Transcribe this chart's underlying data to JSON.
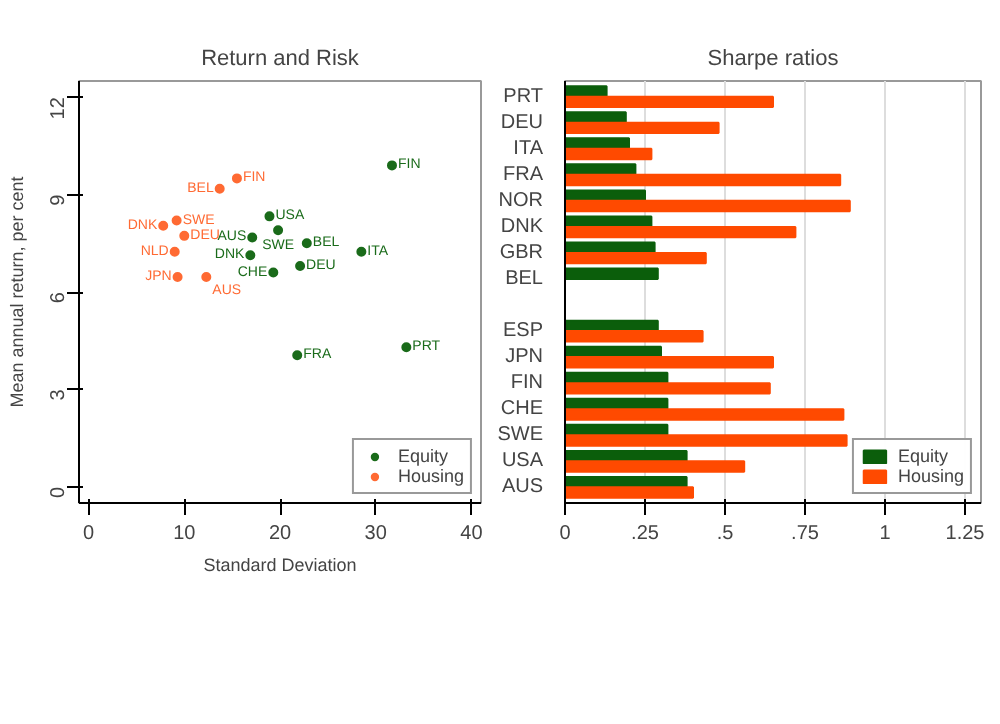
{
  "chart_data": [
    {
      "type": "scatter",
      "title": "Return and Risk",
      "xlabel": "Standard Deviation",
      "ylabel": "Mean annual return, per cent",
      "xlim": [
        -1,
        41
      ],
      "ylim": [
        -0.5,
        12.5
      ],
      "xticks": [
        0,
        10,
        20,
        30,
        40
      ],
      "yticks": [
        0,
        3,
        6,
        9,
        12
      ],
      "legend": "bottom right",
      "marker": "circle",
      "grid": false,
      "series": [
        {
          "name": "Equity",
          "color": "#1a6b1a",
          "x": [
            31.7,
            18.9,
            19.8,
            17.1,
            22.8,
            28.5,
            16.9,
            22.1,
            19.3,
            33.2,
            21.8
          ],
          "values": [
            9.9,
            8.33,
            7.9,
            7.68,
            7.5,
            7.24,
            7.13,
            6.8,
            6.6,
            4.3,
            4.05
          ]
        },
        {
          "name": "Housing",
          "color": "#ff6a33",
          "x": [
            15.5,
            13.7,
            9.2,
            7.8,
            10.0,
            9.0,
            12.3,
            9.3
          ],
          "values": [
            9.5,
            9.18,
            8.2,
            8.04,
            7.73,
            7.24,
            6.46,
            6.46
          ]
        }
      ],
      "annotations": [
        {
          "text": "FIN",
          "x": 31.7,
          "y": 9.9
        },
        {
          "text": "USA",
          "x": 18.9,
          "y": 8.33
        },
        {
          "text": "SWE",
          "x": 19.8,
          "y": 7.9
        },
        {
          "text": "AUS",
          "x": 17.1,
          "y": 7.68
        },
        {
          "text": "BEL",
          "x": 22.8,
          "y": 7.5
        },
        {
          "text": "ITA",
          "x": 28.5,
          "y": 7.24
        },
        {
          "text": "DNK",
          "x": 16.9,
          "y": 7.13
        },
        {
          "text": "DEU",
          "x": 22.1,
          "y": 6.8
        },
        {
          "text": "CHE",
          "x": 19.3,
          "y": 6.6
        },
        {
          "text": "PRT",
          "x": 33.2,
          "y": 4.3
        },
        {
          "text": "FRA",
          "x": 21.8,
          "y": 4.05
        },
        {
          "text": "FIN",
          "x": 15.5,
          "y": 9.5
        },
        {
          "text": "BEL",
          "x": 13.7,
          "y": 9.18
        },
        {
          "text": "SWE",
          "x": 9.2,
          "y": 8.2
        },
        {
          "text": "DNK",
          "x": 7.8,
          "y": 8.04
        },
        {
          "text": "DEU",
          "x": 10.0,
          "y": 7.73
        },
        {
          "text": "NLD",
          "x": 9.0,
          "y": 7.24
        },
        {
          "text": "AUS",
          "x": 12.3,
          "y": 6.46
        },
        {
          "text": "JPN",
          "x": 9.3,
          "y": 6.46
        }
      ]
    },
    {
      "type": "bar",
      "orientation": "horizontal",
      "title": "Sharpe ratios",
      "categories": [
        "PRT",
        "DEU",
        "ITA",
        "FRA",
        "NOR",
        "DNK",
        "GBR",
        "BEL",
        null,
        "ESP",
        "JPN",
        "FIN",
        "CHE",
        "SWE",
        "USA",
        "AUS"
      ],
      "xlim": [
        0,
        1.3
      ],
      "xticks": [
        0,
        {
          "value": 0.25,
          "label": ".25"
        },
        {
          "value": 0.5,
          "label": ".5"
        },
        {
          "value": 0.75,
          "label": ".75"
        },
        1,
        1.25
      ],
      "grid": "x",
      "legend": "bottom right",
      "series": [
        {
          "name": "Equity",
          "color": "#0b5e0b",
          "values": [
            0.13,
            0.19,
            0.2,
            0.22,
            0.25,
            0.27,
            0.28,
            0.29,
            null,
            0.29,
            0.3,
            0.32,
            0.32,
            0.32,
            0.38,
            0.38
          ]
        },
        {
          "name": "Housing",
          "color": "#ff4a00",
          "values": [
            0.65,
            0.48,
            0.27,
            0.86,
            0.89,
            0.72,
            0.44,
            null,
            null,
            0.43,
            0.65,
            0.64,
            0.87,
            0.88,
            0.56,
            0.4
          ]
        }
      ]
    }
  ]
}
